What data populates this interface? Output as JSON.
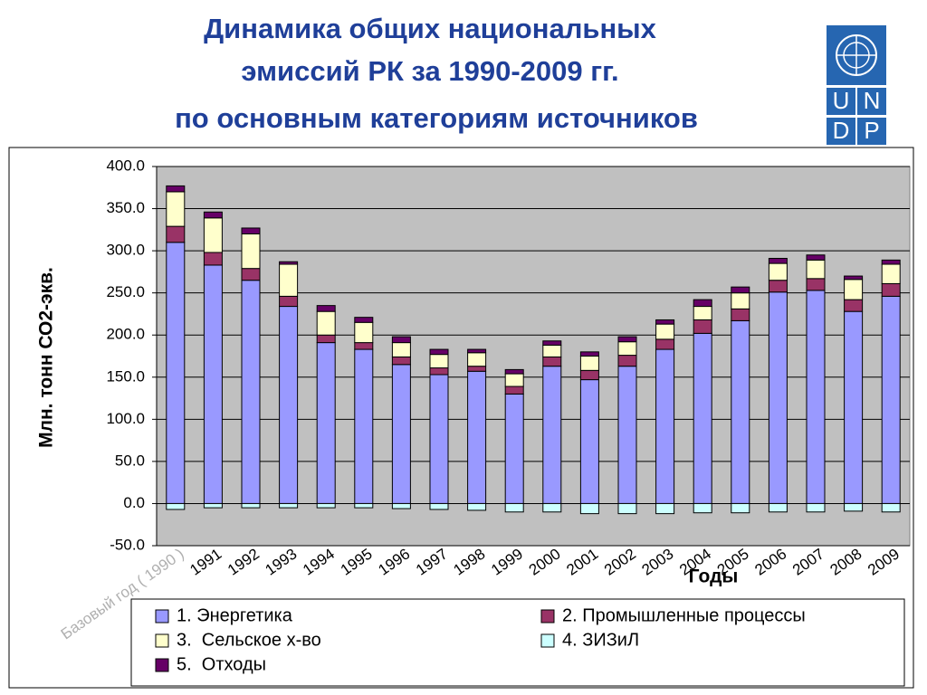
{
  "chart_data": {
    "type": "stacked_bar",
    "title": [
      "Динамика общих национальных",
      "эмиссий РК за 1990-2009 гг.",
      "по основным категориям источников"
    ],
    "y_label": "Млн. тонн СО2-экв.",
    "x_label": "Годы",
    "categories": [
      "Базовый год ( 1990 )",
      "1991",
      "1992",
      "1993",
      "1994",
      "1995",
      "1996",
      "1997",
      "1998",
      "1999",
      "2000",
      "2001",
      "2002",
      "2003",
      "2004",
      "2005",
      "2006",
      "2007",
      "2008",
      "2009"
    ],
    "series": [
      {
        "name": "1. Энергетика",
        "color": "#9999ff",
        "values": [
          310,
          283,
          265,
          234,
          191,
          183,
          165,
          153,
          157,
          130,
          163,
          147,
          163,
          183,
          202,
          217,
          251,
          253,
          228,
          246
        ]
      },
      {
        "name": "2. Промышленные процессы",
        "color": "#993366",
        "values": [
          19,
          15,
          14,
          12,
          9,
          8,
          9,
          8,
          6,
          9,
          11,
          11,
          13,
          12,
          16,
          14,
          14,
          14,
          14,
          15
        ]
      },
      {
        "name": "3.  Сельское х-во",
        "color": "#ffffcc",
        "values": [
          41,
          41,
          41,
          38,
          28,
          24,
          17,
          16,
          16,
          15,
          14,
          17,
          16,
          18,
          16,
          19,
          20,
          22,
          24,
          23
        ]
      },
      {
        "name": "4. ЗИЗиЛ",
        "color": "#ccffff",
        "values": [
          -7,
          -5,
          -5,
          -5,
          -5,
          -5,
          -6,
          -7,
          -8,
          -10,
          -10,
          -12,
          -12,
          -12,
          -11,
          -11,
          -10,
          -10,
          -9,
          -10
        ]
      },
      {
        "name": "5.  Отходы",
        "color": "#660066",
        "values": [
          7,
          7,
          7,
          3,
          7,
          6,
          7,
          6,
          4,
          5,
          5,
          5,
          6,
          5,
          8,
          7,
          6,
          6,
          4,
          5
        ]
      }
    ],
    "ylim": [
      -50,
      400
    ],
    "yticks": [
      {
        "value": -50,
        "label": "-50.0"
      },
      {
        "value": 0,
        "label": "0.0"
      },
      {
        "value": 50,
        "label": "50.0"
      },
      {
        "value": 100,
        "label": "100.0"
      },
      {
        "value": 150,
        "label": "150.0"
      },
      {
        "value": 200,
        "label": "200.0"
      },
      {
        "value": 250,
        "label": "250.0"
      },
      {
        "value": 300,
        "label": "300.0"
      },
      {
        "value": 350,
        "label": "350.0"
      },
      {
        "value": 400,
        "label": "400.0"
      }
    ],
    "grid": true,
    "plot_color": "#c0c0c0"
  },
  "logo": {
    "letters": [
      "U",
      "N",
      "D",
      "P"
    ]
  }
}
